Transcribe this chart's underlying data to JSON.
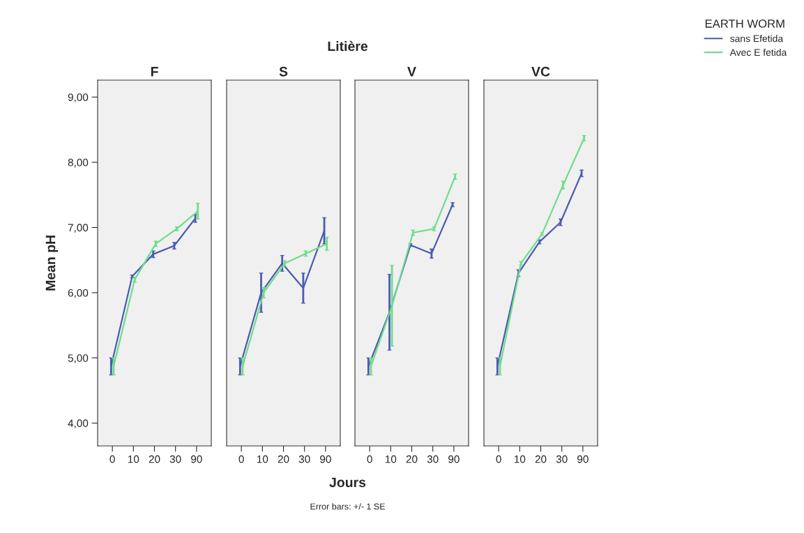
{
  "chart_data": [
    {
      "type": "line",
      "title": "F",
      "ylabel": "Mean pH",
      "legend_title": "EARTH WORM",
      "legend": "top right",
      "annotations": [
        "Error bars: +/- 1 SE"
      ],
      "categories": [
        "0",
        "10",
        "20",
        "30",
        "90"
      ],
      "ylim": [
        3.65,
        9.26
      ],
      "yticks": [
        {
          "value": 4,
          "label": "4,00"
        },
        {
          "value": 5,
          "label": "5,00"
        },
        {
          "value": 6,
          "label": "6,00"
        },
        {
          "value": 7,
          "label": "7,00"
        },
        {
          "value": 8,
          "label": "8,00"
        },
        {
          "value": 9,
          "label": "9,00"
        }
      ],
      "grid": false,
      "series": [
        {
          "name": "sans Efetida",
          "color": "#4a5bb0",
          "values": [
            4.87,
            6.25,
            6.59,
            6.72,
            7.14
          ],
          "errors": [
            0.13,
            0.02,
            0.05,
            0.05,
            0.06
          ]
        },
        {
          "name": "Avec E fetida",
          "color": "#6fdc8c",
          "values": [
            4.87,
            6.2,
            6.75,
            6.98,
            7.25
          ],
          "errors": [
            0.13,
            0.04,
            0.04,
            0.03,
            0.12
          ]
        }
      ]
    },
    {
      "type": "line",
      "title": "S",
      "subtitle": "Litière",
      "xlabel": "Jours",
      "categories": [
        "0",
        "10",
        "20",
        "30",
        "90"
      ],
      "ylim": [
        3.65,
        9.26
      ],
      "tick_labels": "x",
      "grid": false,
      "series": [
        {
          "color": "#4a5bb0",
          "values": [
            4.87,
            6.0,
            6.45,
            6.07,
            6.95
          ],
          "errors": [
            0.13,
            0.3,
            0.12,
            0.23,
            0.2
          ]
        },
        {
          "color": "#6fdc8c",
          "values": [
            4.87,
            6.0,
            6.45,
            6.6,
            6.75
          ],
          "errors": [
            0.13,
            0.08,
            0.04,
            0.04,
            0.1
          ]
        }
      ]
    },
    {
      "type": "line",
      "title": "V",
      "categories": [
        "0",
        "10",
        "20",
        "30",
        "90"
      ],
      "ylim": [
        3.65,
        9.26
      ],
      "tick_labels": "x",
      "grid": false,
      "series": [
        {
          "color": "#4a5bb0",
          "values": [
            4.87,
            5.7,
            6.73,
            6.6,
            7.35
          ],
          "errors": [
            0.13,
            0.58,
            0.02,
            0.07,
            0.03
          ]
        },
        {
          "color": "#6fdc8c",
          "values": [
            4.87,
            5.8,
            6.92,
            6.98,
            7.78
          ],
          "errors": [
            0.13,
            0.62,
            0.04,
            0.03,
            0.04
          ]
        }
      ]
    },
    {
      "type": "line",
      "title": "VC",
      "categories": [
        "0",
        "10",
        "20",
        "30",
        "90"
      ],
      "ylim": [
        3.65,
        9.26
      ],
      "tick_labels": "x",
      "grid": false,
      "series": [
        {
          "color": "#4a5bb0",
          "values": [
            4.87,
            6.3,
            6.78,
            7.08,
            7.83
          ],
          "errors": [
            0.13,
            0.05,
            0.03,
            0.05,
            0.05
          ]
        },
        {
          "color": "#6fdc8c",
          "values": [
            4.87,
            6.45,
            6.9,
            7.65,
            8.37
          ],
          "errors": [
            0.13,
            0.03,
            0.02,
            0.06,
            0.04
          ]
        }
      ]
    }
  ]
}
